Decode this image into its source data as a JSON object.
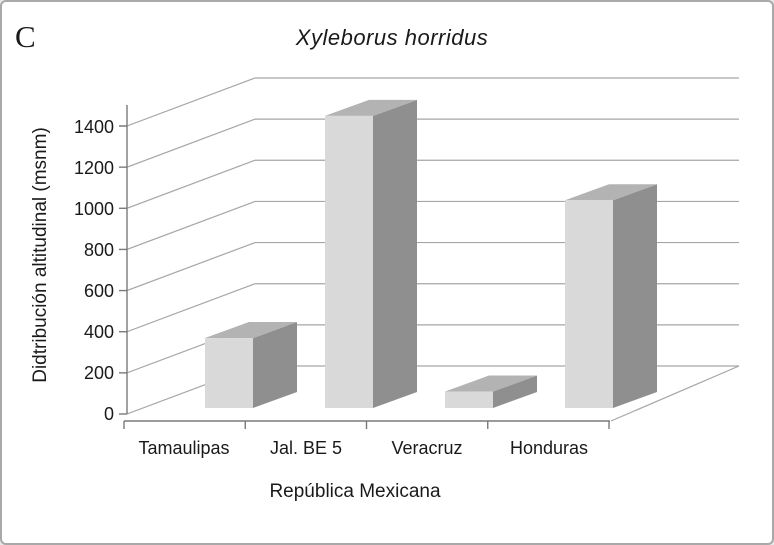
{
  "panel": {
    "label": "C"
  },
  "chart_data": {
    "type": "bar",
    "projection": "3d",
    "title": "Xyleborus horridus",
    "title_italic": true,
    "xlabel": "República Mexicana",
    "ylabel": "Didtribución altitudinal (msnm)",
    "categories": [
      "Tamaulipas",
      "Jal. BE 5",
      "Veracruz",
      "Honduras"
    ],
    "values": [
      340,
      1420,
      80,
      1010
    ],
    "ylim": [
      0,
      1400
    ],
    "ytick_step": 200,
    "yticks": [
      0,
      200,
      400,
      600,
      800,
      1000,
      1200,
      1400
    ],
    "grid": true,
    "legend": "none",
    "colors": {
      "bar_front": "#d9d9d9",
      "bar_top": "#b3b3b3",
      "bar_side": "#8f8f8f",
      "gridline": "#a6a6a6",
      "axis": "#7a7a7a",
      "text": "#1a1a1a",
      "background": "#ffffff",
      "border": "#a9a9a9"
    }
  }
}
